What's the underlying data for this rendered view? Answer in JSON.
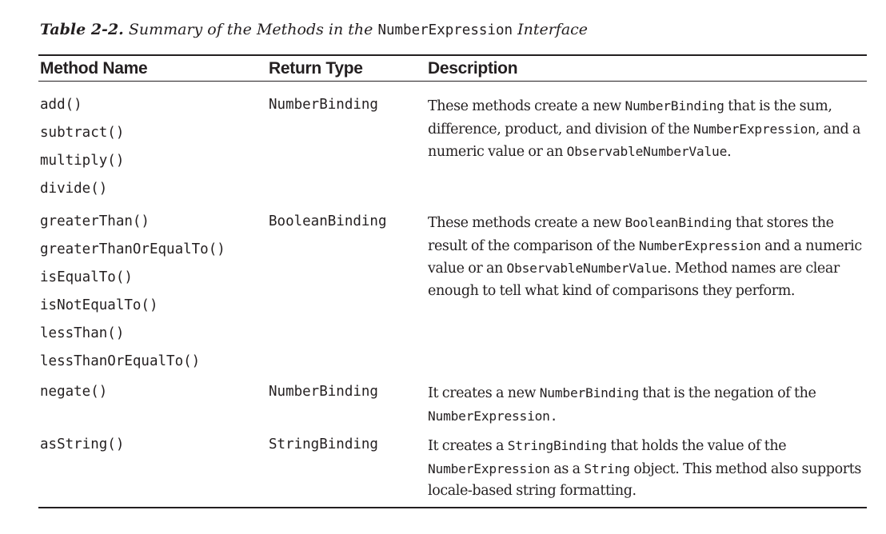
{
  "caption": {
    "label": "Table 2-2.",
    "pre": "Summary of the Methods in the",
    "code": "NumberExpression",
    "post": "Interface"
  },
  "headers": {
    "method_name": "Method Name",
    "return_type": "Return Type",
    "description": "Description"
  },
  "rows": [
    {
      "methods": [
        "add()",
        "subtract()",
        "multiply()",
        "divide()"
      ],
      "return_type": "NumberBinding",
      "description": [
        {
          "t": "text",
          "v": "These methods create a new "
        },
        {
          "t": "code",
          "v": "NumberBinding"
        },
        {
          "t": "text",
          "v": " that is the sum, difference, product, and division of the "
        },
        {
          "t": "code",
          "v": "NumberExpression"
        },
        {
          "t": "text",
          "v": ", and a numeric value or an "
        },
        {
          "t": "code",
          "v": "ObservableNumberValue"
        },
        {
          "t": "text",
          "v": "."
        }
      ]
    },
    {
      "methods": [
        "greaterThan()",
        "greaterThanOrEqualTo()",
        "isEqualTo()",
        "isNotEqualTo()",
        "lessThan()",
        "lessThanOrEqualTo()"
      ],
      "return_type": "BooleanBinding",
      "description": [
        {
          "t": "text",
          "v": "These methods create a new "
        },
        {
          "t": "code",
          "v": "BooleanBinding"
        },
        {
          "t": "text",
          "v": " that stores the result of the comparison of the "
        },
        {
          "t": "code",
          "v": "NumberExpression"
        },
        {
          "t": "text",
          "v": " and a numeric value or an "
        },
        {
          "t": "code",
          "v": "ObservableNumberValue"
        },
        {
          "t": "text",
          "v": ". Method names are clear enough to tell what kind of comparisons they perform."
        }
      ]
    },
    {
      "methods": [
        "negate()"
      ],
      "return_type": "NumberBinding",
      "description": [
        {
          "t": "text",
          "v": "It creates a new "
        },
        {
          "t": "code",
          "v": "NumberBinding"
        },
        {
          "t": "text",
          "v": " that is the negation of the "
        },
        {
          "t": "code",
          "v": "NumberExpression."
        }
      ]
    },
    {
      "methods": [
        "asString()"
      ],
      "return_type": "StringBinding",
      "description": [
        {
          "t": "text",
          "v": "It creates a "
        },
        {
          "t": "code",
          "v": "StringBinding"
        },
        {
          "t": "text",
          "v": " that holds the value of the "
        },
        {
          "t": "code",
          "v": "NumberExpression"
        },
        {
          "t": "text",
          "v": " as a "
        },
        {
          "t": "code",
          "v": "String"
        },
        {
          "t": "text",
          "v": " object. This method also supports locale-based string formatting."
        }
      ]
    }
  ]
}
